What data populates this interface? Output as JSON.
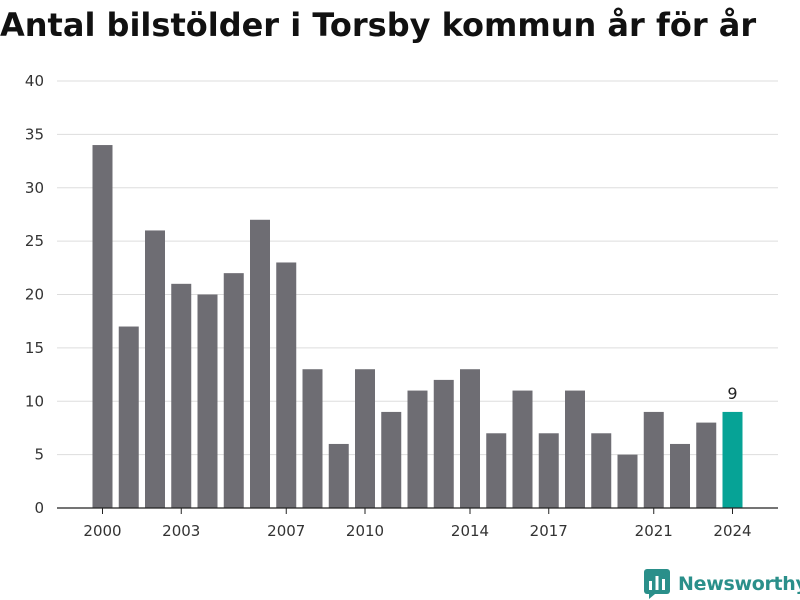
{
  "title": "Antal bilstölder i Torsby kommun år för år",
  "brand": {
    "name": "Newsworthy",
    "icon": "newsworthy-chart-logo-icon"
  },
  "colors": {
    "bar": "#6e6d73",
    "highlight": "#06a396",
    "grid": "#dddddd",
    "axis": "#222222",
    "brand": "#2a8f8a"
  },
  "chart_data": {
    "type": "bar",
    "categories": [
      "2000",
      "2001",
      "2002",
      "2003",
      "2004",
      "2005",
      "2006",
      "2007",
      "2008",
      "2009",
      "2010",
      "2011",
      "2012",
      "2013",
      "2014",
      "2015",
      "2016",
      "2017",
      "2018",
      "2019",
      "2020",
      "2021",
      "2022",
      "2023",
      "2024"
    ],
    "values": [
      34,
      17,
      26,
      21,
      20,
      22,
      27,
      23,
      13,
      6,
      13,
      9,
      11,
      12,
      13,
      7,
      11,
      7,
      11,
      7,
      5,
      9,
      6,
      8,
      9
    ],
    "x_tick_labels": [
      "2000",
      "2003",
      "2007",
      "2010",
      "2014",
      "2017",
      "2021",
      "2024"
    ],
    "y_ticks": [
      0,
      5,
      10,
      15,
      20,
      25,
      30,
      35,
      40
    ],
    "ylim": [
      0,
      40
    ],
    "highlight_category": "2024",
    "data_labels": [
      {
        "category": "2024",
        "text": "9"
      }
    ],
    "grid": true,
    "legend": "none"
  }
}
